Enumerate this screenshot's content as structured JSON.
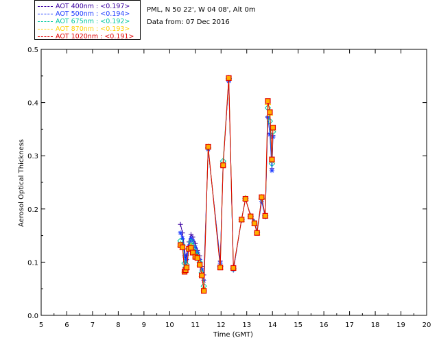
{
  "legend": {
    "items": [
      {
        "label": "AOT  400nm : <0.197>",
        "color": "#3a00a0"
      },
      {
        "label": "AOT  500nm : <0.194>",
        "color": "#1e3cff"
      },
      {
        "label": "AOT  675nm : <0.192>",
        "color": "#00c8a0"
      },
      {
        "label": "AOT  870nm : <0.193>",
        "color": "#ffd000"
      },
      {
        "label": "AOT 1020nm : <0.191>",
        "color": "#e00000"
      }
    ]
  },
  "info": {
    "site": "PML, N 50 22', W 04 08', Alt 0m",
    "date": "Data from: 07 Dec 2016"
  },
  "chart_data": {
    "type": "line",
    "xlabel": "Time (GMT)",
    "ylabel": "Aerosol Optical Thickness",
    "xlim": [
      5,
      20
    ],
    "ylim": [
      0.0,
      0.5
    ],
    "xticks": [
      "5",
      "6",
      "7",
      "8",
      "9",
      "10",
      "11",
      "12",
      "13",
      "14",
      "15",
      "16",
      "17",
      "18",
      "19",
      "20"
    ],
    "yticks": [
      "0.0",
      "0.1",
      "0.2",
      "0.3",
      "0.4",
      "0.5"
    ],
    "series": [
      {
        "name": "AOT  400nm : <0.197>",
        "color": "#3a00a0",
        "marker": "plus",
        "x": [
          10.42,
          10.5,
          10.58,
          10.62,
          10.66,
          10.75,
          10.83,
          10.9,
          11.0,
          11.08,
          11.17,
          11.25,
          11.33,
          11.5,
          11.97,
          12.08,
          12.3,
          12.48,
          12.8,
          12.95,
          13.15,
          13.3,
          13.4,
          13.58,
          13.72,
          13.82,
          13.9,
          13.98,
          14.02
        ],
        "y": [
          0.171,
          0.155,
          0.125,
          0.108,
          0.113,
          0.138,
          0.152,
          0.147,
          0.135,
          0.122,
          0.112,
          0.092,
          0.076,
          0.312,
          0.102,
          0.287,
          0.44,
          0.085,
          0.181,
          0.219,
          0.188,
          0.177,
          0.158,
          0.218,
          0.188,
          0.374,
          0.342,
          0.276,
          0.338
        ]
      },
      {
        "name": "AOT  500nm : <0.194>",
        "color": "#1e3cff",
        "marker": "star",
        "x": [
          10.42,
          10.5,
          10.58,
          10.62,
          10.66,
          10.75,
          10.83,
          10.9,
          11.0,
          11.08,
          11.17,
          11.25,
          11.33,
          11.5,
          11.97,
          12.08,
          12.3,
          12.48,
          12.8,
          12.95,
          13.15,
          13.3,
          13.4,
          13.58,
          13.72,
          13.82,
          13.9,
          13.98,
          14.02
        ],
        "y": [
          0.155,
          0.145,
          0.112,
          0.1,
          0.105,
          0.13,
          0.145,
          0.14,
          0.128,
          0.118,
          0.105,
          0.085,
          0.065,
          0.312,
          0.098,
          0.284,
          0.44,
          0.086,
          0.18,
          0.219,
          0.187,
          0.175,
          0.155,
          0.214,
          0.185,
          0.372,
          0.34,
          0.272,
          0.335
        ]
      },
      {
        "name": "AOT  675nm : <0.192>",
        "color": "#00c8a0",
        "marker": "diamond",
        "x": [
          10.42,
          10.5,
          10.58,
          10.62,
          10.66,
          10.75,
          10.83,
          10.9,
          11.0,
          11.08,
          11.17,
          11.25,
          11.33,
          11.5,
          11.97,
          12.08,
          12.3,
          12.48,
          12.8,
          12.95,
          13.15,
          13.3,
          13.4,
          13.58,
          13.72,
          13.82,
          13.9,
          13.98,
          14.02
        ],
        "y": [
          0.14,
          0.132,
          0.098,
          0.09,
          0.095,
          0.125,
          0.138,
          0.13,
          0.12,
          0.112,
          0.1,
          0.08,
          0.055,
          0.315,
          0.092,
          0.29,
          0.445,
          0.088,
          0.18,
          0.22,
          0.186,
          0.174,
          0.156,
          0.22,
          0.187,
          0.39,
          0.365,
          0.285,
          0.345
        ]
      },
      {
        "name": "AOT  870nm : <0.193>",
        "color": "#ffd000",
        "marker": "triangle",
        "x": [
          10.42,
          10.5,
          10.58,
          10.62,
          10.66,
          10.75,
          10.83,
          10.9,
          11.0,
          11.08,
          11.17,
          11.25,
          11.33,
          11.5,
          11.97,
          12.08,
          12.3,
          12.48,
          12.8,
          12.95,
          13.15,
          13.3,
          13.4,
          13.58,
          13.72,
          13.82,
          13.9,
          13.98,
          14.02
        ],
        "y": [
          0.133,
          0.128,
          0.085,
          0.085,
          0.09,
          0.125,
          0.13,
          0.12,
          0.112,
          0.11,
          0.097,
          0.077,
          0.05,
          0.317,
          0.09,
          0.284,
          0.446,
          0.089,
          0.18,
          0.22,
          0.186,
          0.173,
          0.155,
          0.222,
          0.187,
          0.4,
          0.38,
          0.292,
          0.352
        ]
      },
      {
        "name": "AOT 1020nm : <0.191>",
        "color": "#e00000",
        "marker": "square",
        "x": [
          10.42,
          10.5,
          10.58,
          10.62,
          10.66,
          10.75,
          10.83,
          10.9,
          11.0,
          11.08,
          11.17,
          11.25,
          11.33,
          11.5,
          11.97,
          12.08,
          12.3,
          12.48,
          12.8,
          12.95,
          13.15,
          13.3,
          13.4,
          13.58,
          13.72,
          13.82,
          13.9,
          13.98,
          14.02
        ],
        "y": [
          0.132,
          0.128,
          0.082,
          0.085,
          0.09,
          0.125,
          0.127,
          0.118,
          0.11,
          0.108,
          0.095,
          0.075,
          0.046,
          0.317,
          0.09,
          0.282,
          0.446,
          0.089,
          0.18,
          0.219,
          0.186,
          0.173,
          0.155,
          0.222,
          0.187,
          0.403,
          0.382,
          0.293,
          0.353
        ]
      }
    ]
  }
}
